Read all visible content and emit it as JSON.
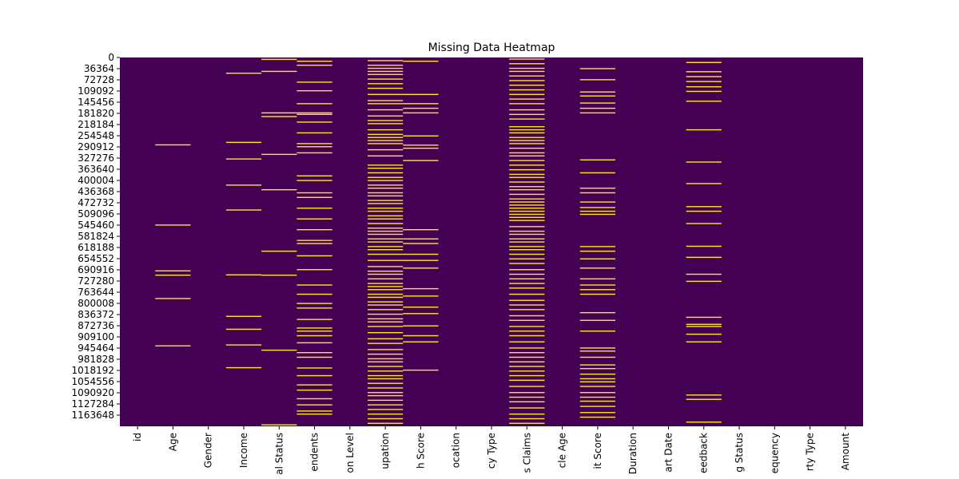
{
  "chart_data": {
    "type": "heatmap",
    "title": "Missing Data Heatmap",
    "xlabel": "",
    "ylabel": "",
    "colormap": [
      "#440154",
      "#fde725"
    ],
    "missing_color": "#fde725",
    "present_color": "#440154",
    "colorbar": false,
    "grid": false,
    "row_range": [
      0,
      1200000
    ],
    "y_ticks": [
      0,
      36364,
      72728,
      109092,
      145456,
      181820,
      218184,
      254548,
      290912,
      327276,
      363640,
      400004,
      436368,
      472732,
      509096,
      545460,
      581824,
      618188,
      654552,
      690916,
      727280,
      763644,
      800008,
      836372,
      872736,
      909100,
      945464,
      981828,
      1018192,
      1054556,
      1090920,
      1127284,
      1163648
    ],
    "columns": [
      {
        "label": "id",
        "missing_rows": []
      },
      {
        "label": "Age",
        "missing_rows": [
          284000,
          545000,
          694000,
          708000,
          784000,
          938000
        ]
      },
      {
        "label": "Gender",
        "missing_rows": []
      },
      {
        "label": "Income",
        "missing_rows": [
          51000,
          276000,
          330000,
          415000,
          496000,
          707000,
          842000,
          884000,
          935000,
          1009000
        ]
      },
      {
        "label": "al Status",
        "missing_rows": [
          6000,
          45000,
          180000,
          192000,
          315000,
          430000,
          630000,
          708000,
          952000,
          1195000
        ]
      },
      {
        "label": "endents",
        "missing_rows": [
          12000,
          25000,
          80000,
          108000,
          150000,
          180000,
          185000,
          210000,
          245000,
          280000,
          290000,
          310000,
          385000,
          400000,
          440000,
          455000,
          490000,
          525000,
          560000,
          595000,
          605000,
          645000,
          690000,
          740000,
          770000,
          800000,
          815000,
          852000,
          880000,
          890000,
          905000,
          928000,
          960000,
          975000,
          1010000,
          1035000,
          1065000,
          1082000,
          1110000,
          1130000,
          1150000,
          1160000
        ]
      },
      {
        "label": "on Level",
        "missing_rows": []
      },
      {
        "label": "upation",
        "missing_rows": [
          10000,
          25000,
          35000,
          45000,
          55000,
          70000,
          85000,
          100000,
          120000,
          140000,
          150000,
          170000,
          190000,
          205000,
          215000,
          235000,
          250000,
          260000,
          270000,
          280000,
          300000,
          320000,
          350000,
          360000,
          375000,
          390000,
          400000,
          415000,
          425000,
          440000,
          450000,
          465000,
          475000,
          490000,
          500000,
          515000,
          525000,
          540000,
          555000,
          565000,
          575000,
          590000,
          600000,
          615000,
          625000,
          640000,
          660000,
          680000,
          695000,
          705000,
          720000,
          735000,
          745000,
          755000,
          770000,
          780000,
          795000,
          805000,
          820000,
          835000,
          850000,
          860000,
          875000,
          895000,
          915000,
          930000,
          950000,
          965000,
          980000,
          990000,
          1005000,
          1020000,
          1035000,
          1045000,
          1060000,
          1075000,
          1090000,
          1100000,
          1115000,
          1130000,
          1145000,
          1160000,
          1175000,
          1190000
        ]
      },
      {
        "label": "h Score",
        "missing_rows": [
          12000,
          120000,
          150000,
          165000,
          180000,
          255000,
          285000,
          295000,
          335000,
          560000,
          590000,
          605000,
          640000,
          660000,
          685000,
          752000,
          776000,
          812000,
          833000,
          873000,
          905000,
          925000,
          1017000
        ]
      },
      {
        "label": "ocation",
        "missing_rows": []
      },
      {
        "label": "cy Type",
        "missing_rows": []
      },
      {
        "label": "s Claims",
        "missing_rows": [
          5000,
          20000,
          35000,
          45000,
          60000,
          75000,
          90000,
          105000,
          120000,
          135000,
          150000,
          170000,
          185000,
          200000,
          225000,
          235000,
          245000,
          260000,
          270000,
          280000,
          295000,
          310000,
          320000,
          335000,
          350000,
          365000,
          380000,
          390000,
          405000,
          420000,
          430000,
          445000,
          460000,
          470000,
          480000,
          490000,
          500000,
          510000,
          520000,
          530000,
          550000,
          565000,
          575000,
          590000,
          600000,
          615000,
          625000,
          640000,
          655000,
          670000,
          690000,
          705000,
          720000,
          735000,
          750000,
          770000,
          790000,
          805000,
          820000,
          840000,
          855000,
          875000,
          890000,
          905000,
          925000,
          945000,
          960000,
          975000,
          990000,
          1005000,
          1020000,
          1035000,
          1050000,
          1070000,
          1090000,
          1105000,
          1120000,
          1140000,
          1160000,
          1175000,
          1190000
        ]
      },
      {
        "label": "cle Age",
        "missing_rows": []
      },
      {
        "label": "it Score",
        "missing_rows": [
          36000,
          72000,
          112000,
          125000,
          148000,
          165000,
          180000,
          333000,
          375000,
          425000,
          440000,
          470000,
          488000,
          500000,
          510000,
          615000,
          630000,
          655000,
          685000,
          720000,
          740000,
          755000,
          770000,
          830000,
          855000,
          890000,
          945000,
          955000,
          975000,
          1000000,
          1012000,
          1030000,
          1045000,
          1055000,
          1070000,
          1090000,
          1105000,
          1118000,
          1135000,
          1155000,
          1170000
        ]
      },
      {
        "label": "Duration",
        "missing_rows": []
      },
      {
        "label": "art Date",
        "missing_rows": []
      },
      {
        "label": "eedback",
        "missing_rows": [
          16000,
          46000,
          62000,
          78000,
          95000,
          110000,
          142000,
          235000,
          340000,
          410000,
          485000,
          500000,
          540000,
          614000,
          650000,
          705000,
          728000,
          845000,
          868000,
          875000,
          900000,
          925000,
          1098000,
          1112000,
          1186000
        ]
      },
      {
        "label": "g Status",
        "missing_rows": []
      },
      {
        "label": "equency",
        "missing_rows": []
      },
      {
        "label": "rty Type",
        "missing_rows": []
      },
      {
        "label": "Amount",
        "missing_rows": []
      }
    ]
  }
}
